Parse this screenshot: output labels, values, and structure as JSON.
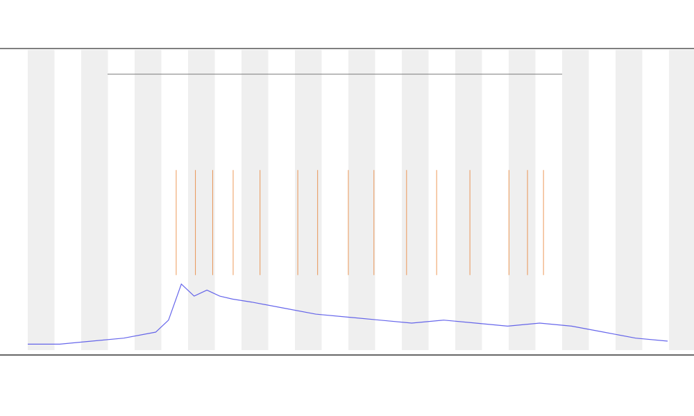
{
  "chart_data": {
    "type": "line",
    "title": "",
    "subtitle_lines": [],
    "xlabel": "",
    "ylabel": "",
    "grid": false,
    "x_bands": "alternating",
    "legend_placement": "top-left",
    "colors": {
      "main_trace": "#4a4ae8",
      "event_orange": "#e87722",
      "event_yellow": "#d8d820",
      "event_black": "#222222",
      "event_red": "#e03030",
      "band": "#efefef",
      "axis": "#333333"
    },
    "x_range": [
      0,
      1000
    ],
    "y_range": [
      0,
      100
    ],
    "series": [
      {
        "kind": "trace",
        "x": [
          0,
          50,
          100,
          150,
          200,
          220,
          240,
          260,
          280,
          300,
          320,
          350,
          400,
          450,
          500,
          550,
          600,
          650,
          700,
          750,
          800,
          850,
          900,
          950,
          1000
        ],
        "y": [
          2,
          2,
          3,
          4,
          6,
          10,
          22,
          18,
          20,
          18,
          17,
          16,
          14,
          12,
          11,
          10,
          9,
          10,
          9,
          8,
          9,
          8,
          6,
          4,
          3
        ]
      }
    ],
    "event_marks": [
      {
        "kind": "orange",
        "x": [
          232,
          262,
          289,
          321,
          363,
          422,
          453,
          501,
          541,
          592,
          639,
          691,
          752,
          781,
          806
        ],
        "top": 60
      }
    ]
  }
}
